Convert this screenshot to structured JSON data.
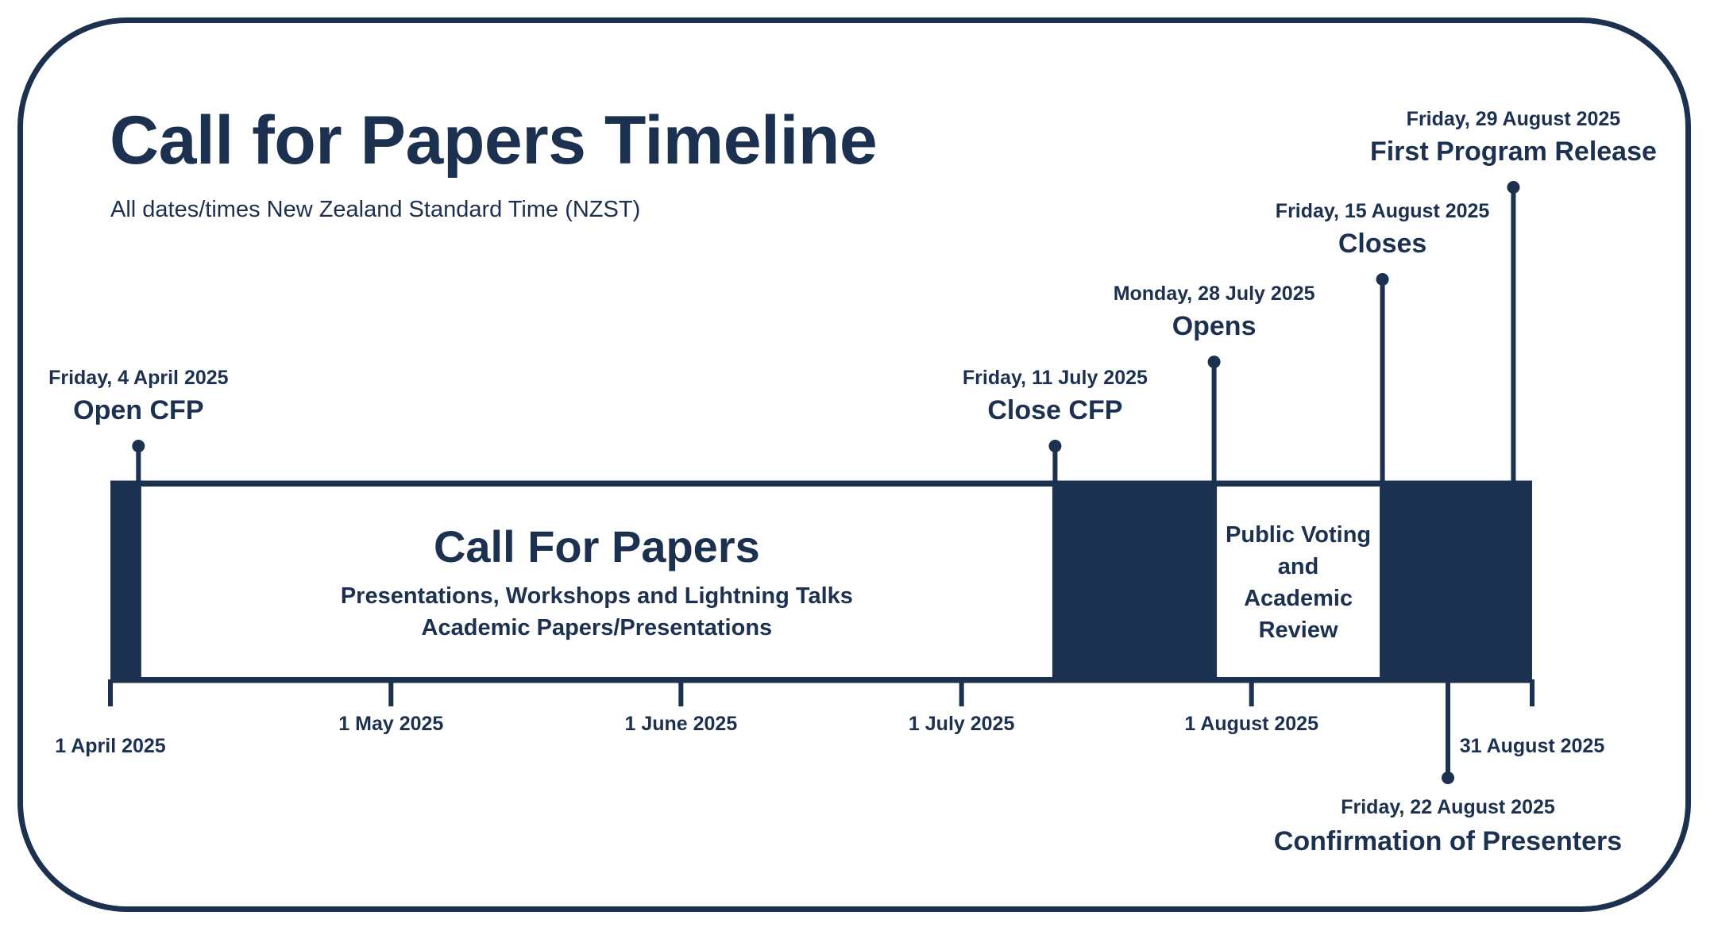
{
  "title": "Call for Papers Timeline",
  "subtitle": "All dates/times New Zealand Standard Time (NZST)",
  "colors": {
    "primary": "#1c3150",
    "background": "#ffffff"
  },
  "axis": {
    "start": "2025-04-01",
    "end": "2025-08-31",
    "ticks": [
      {
        "date": "2025-04-01",
        "label": "1 April 2025",
        "row": "low"
      },
      {
        "date": "2025-05-01",
        "label": "1 May 2025",
        "row": "high"
      },
      {
        "date": "2025-06-01",
        "label": "1 June 2025",
        "row": "high"
      },
      {
        "date": "2025-07-01",
        "label": "1 July 2025",
        "row": "high"
      },
      {
        "date": "2025-08-01",
        "label": "1 August 2025",
        "row": "high"
      },
      {
        "date": "2025-08-31",
        "label": "31 August 2025",
        "row": "low"
      }
    ]
  },
  "periods": [
    {
      "start": "2025-04-01",
      "end": "2025-04-04",
      "style": "filled",
      "lines": []
    },
    {
      "start": "2025-04-04",
      "end": "2025-07-11",
      "style": "outline",
      "heading": "Call For Papers",
      "lines": [
        "Presentations, Workshops and Lightning Talks",
        "Academic Papers/Presentations"
      ]
    },
    {
      "start": "2025-07-11",
      "end": "2025-07-28",
      "style": "filled",
      "lines": []
    },
    {
      "start": "2025-07-28",
      "end": "2025-08-15",
      "style": "outline",
      "lines": [
        "Public Voting",
        "and",
        "Academic",
        "Review"
      ]
    },
    {
      "start": "2025-08-15",
      "end": "2025-08-31",
      "style": "filled",
      "lines": []
    }
  ],
  "milestones": [
    {
      "date": "2025-04-04",
      "date_label": "Friday, 4 April 2025",
      "label": "Open CFP",
      "side": "above",
      "level": 1
    },
    {
      "date": "2025-07-11",
      "date_label": "Friday, 11 July 2025",
      "label": "Close CFP",
      "side": "above",
      "level": 1
    },
    {
      "date": "2025-07-28",
      "date_label": "Monday, 28 July 2025",
      "label": "Opens",
      "side": "above",
      "level": 2
    },
    {
      "date": "2025-08-15",
      "date_label": "Friday, 15 August 2025",
      "label": "Closes",
      "side": "above",
      "level": 3
    },
    {
      "date": "2025-08-29",
      "date_label": "Friday, 29 August 2025",
      "label": "First Program Release",
      "side": "above",
      "level": 4
    },
    {
      "date": "2025-08-22",
      "date_label": "Friday, 22 August 2025",
      "label": "Confirmation of Presenters",
      "side": "below",
      "level": 1
    }
  ]
}
